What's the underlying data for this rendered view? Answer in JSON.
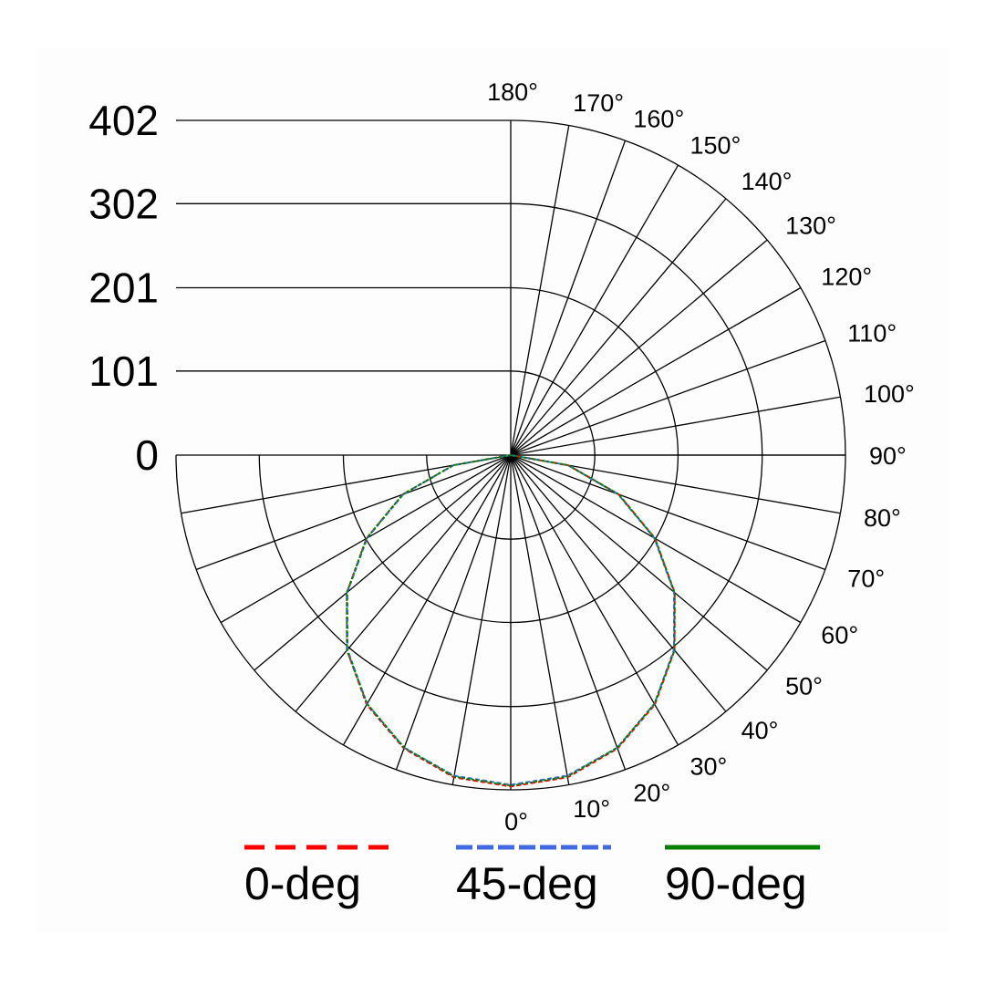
{
  "chart_data": {
    "type": "polar-line",
    "title": "",
    "radial_axis": {
      "range": [
        0,
        402
      ],
      "ticks": [
        0,
        101,
        201,
        302,
        402
      ]
    },
    "angular_axis": {
      "range_deg": [
        0,
        180
      ],
      "step_deg": 10,
      "labels": [
        "0°",
        "10°",
        "20°",
        "30°",
        "40°",
        "50°",
        "60°",
        "70°",
        "80°",
        "90°",
        "100°",
        "110°",
        "120°",
        "130°",
        "140°",
        "150°",
        "160°",
        "170°",
        "180°"
      ]
    },
    "mirrored_half": true,
    "grid": true,
    "legend_position": "bottom",
    "series": [
      {
        "name": "0-deg",
        "color": "#ff0000",
        "line_style": "dashed",
        "angles_deg": [
          0,
          10,
          20,
          30,
          40,
          50,
          60,
          70,
          80,
          90
        ],
        "values": [
          398,
          393,
          375,
          346,
          306,
          257,
          200,
          138,
          70,
          0
        ]
      },
      {
        "name": "45-deg",
        "color": "#4169e1",
        "line_style": "dashed",
        "angles_deg": [
          0,
          10,
          20,
          30,
          40,
          50,
          60,
          70,
          80,
          90
        ],
        "values": [
          396,
          391,
          374,
          345,
          305,
          256,
          199,
          137,
          70,
          0
        ]
      },
      {
        "name": "90-deg",
        "color": "#008000",
        "line_style": "solid",
        "angles_deg": [
          0,
          10,
          20,
          30,
          40,
          50,
          60,
          70,
          80,
          90
        ],
        "values": [
          397,
          392,
          374,
          345,
          306,
          257,
          200,
          138,
          70,
          0
        ]
      }
    ]
  }
}
